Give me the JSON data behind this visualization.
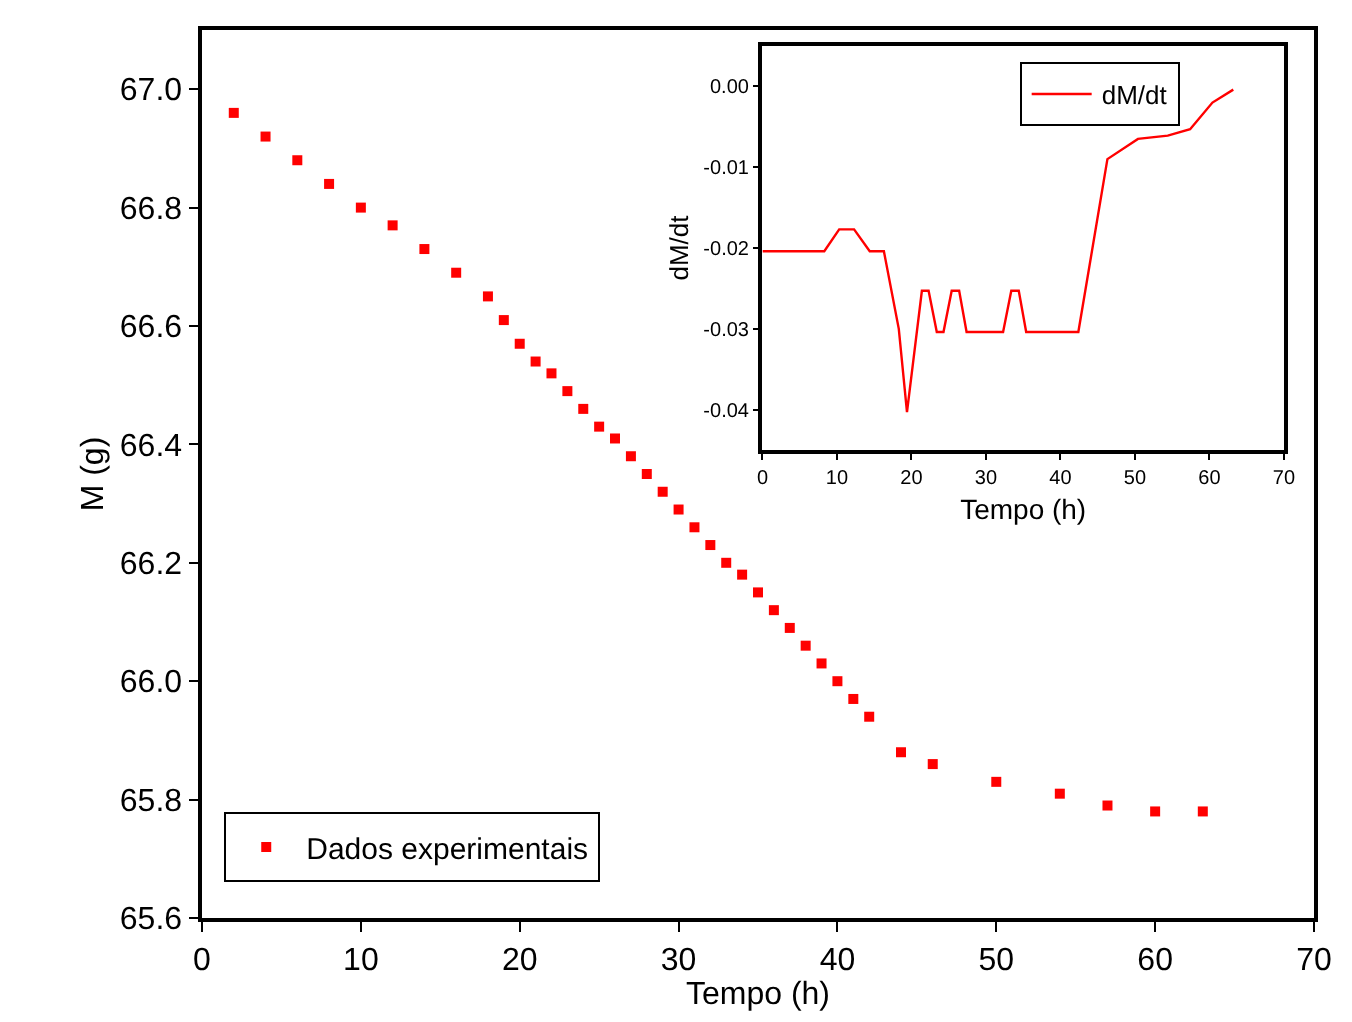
{
  "chart_data": [
    {
      "type": "scatter",
      "xlabel": "Tempo (h)",
      "ylabel": "M (g)",
      "marker": "square",
      "legend": "bottom left",
      "xlim": [
        0,
        70
      ],
      "xticks": [
        0,
        10,
        20,
        30,
        40,
        50,
        60,
        70
      ],
      "ylim": [
        65.6,
        67.1
      ],
      "yticks": [
        {
          "value": 65.6,
          "label": "65.6"
        },
        {
          "value": 65.8,
          "label": "65.8"
        },
        {
          "value": 66.0,
          "label": "66.0"
        },
        {
          "value": 66.2,
          "label": "66.2"
        },
        {
          "value": 66.4,
          "label": "66.4"
        },
        {
          "value": 66.6,
          "label": "66.6"
        },
        {
          "value": 66.8,
          "label": "66.8"
        },
        {
          "value": 67.0,
          "label": "67.0"
        }
      ],
      "series": [
        {
          "name": "Dados experimentais",
          "color": "#ff0000",
          "x": [
            2,
            4,
            6,
            8,
            10,
            12,
            14,
            16,
            18,
            19,
            20,
            21,
            22,
            23,
            24,
            25,
            26,
            27,
            28,
            29,
            30,
            31,
            32,
            33,
            34,
            35,
            36,
            37,
            38,
            39,
            40,
            41,
            42,
            44,
            46,
            50,
            54,
            57,
            60,
            63
          ],
          "values": [
            66.96,
            66.92,
            66.88,
            66.84,
            66.8,
            66.77,
            66.73,
            66.69,
            66.65,
            66.61,
            66.57,
            66.54,
            66.52,
            66.49,
            66.46,
            66.43,
            66.41,
            66.38,
            66.35,
            66.32,
            66.29,
            66.26,
            66.23,
            66.2,
            66.18,
            66.15,
            66.12,
            66.09,
            66.06,
            66.03,
            66.0,
            65.97,
            65.94,
            65.88,
            65.86,
            65.83,
            65.81,
            65.79,
            65.78,
            65.78
          ]
        }
      ]
    },
    {
      "type": "line",
      "xlabel": "Tempo (h)",
      "ylabel": "dM/dt",
      "marker": "none",
      "line_style": "solid",
      "legend": "top right",
      "xlim": [
        0,
        70
      ],
      "xticks": [
        0,
        10,
        20,
        30,
        40,
        50,
        60,
        70
      ],
      "ylim": [
        -0.045,
        0.005
      ],
      "yticks": [
        {
          "value": -0.04,
          "label": "-0.04"
        },
        {
          "value": -0.03,
          "label": "-0.03"
        },
        {
          "value": -0.02,
          "label": "-0.02"
        },
        {
          "value": -0.01,
          "label": "-0.01"
        },
        {
          "value": 0,
          "label": "0.00"
        }
      ],
      "series": [
        {
          "name": "dM/dt",
          "color": "#ff0000",
          "x": [
            0,
            8.3,
            10.3,
            12.3,
            14.4,
            16.3,
            18.3,
            19.4,
            21.4,
            22.3,
            23.4,
            24.3,
            25.4,
            26.4,
            27.4,
            32.3,
            33.4,
            34.4,
            35.4,
            42.4,
            46.3,
            50.4,
            54.4,
            57.4,
            60.4,
            63.2
          ],
          "values": [
            -0.0204,
            -0.0204,
            -0.0177,
            -0.0177,
            -0.0204,
            -0.0204,
            -0.03,
            -0.0403,
            -0.0253,
            -0.0253,
            -0.0304,
            -0.0304,
            -0.0253,
            -0.0253,
            -0.0304,
            -0.0304,
            -0.0253,
            -0.0253,
            -0.0304,
            -0.0304,
            -0.009,
            -0.0065,
            -0.0061,
            -0.0053,
            -0.002,
            -0.0004
          ]
        }
      ]
    }
  ]
}
